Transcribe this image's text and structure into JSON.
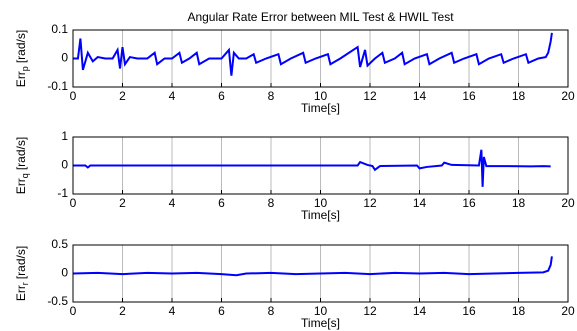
{
  "chart_data": [
    {
      "type": "line",
      "title": "Angular Rate Error between MIL Test & HWIL Test",
      "ylabel": {
        "base": "Err",
        "sub": "p",
        "unit": "[rad/s]"
      },
      "xlabel": "Time[s]",
      "xlim": [
        0,
        20
      ],
      "xticks": [
        0,
        2,
        4,
        6,
        8,
        10,
        12,
        14,
        16,
        18,
        20
      ],
      "ylim": [
        -0.1,
        0.1
      ],
      "yticks": [
        -0.1,
        0,
        0.1
      ],
      "grid": "x",
      "x": [
        0,
        0.2,
        0.3,
        0.4,
        0.6,
        0.8,
        1.0,
        1.3,
        1.6,
        1.8,
        1.9,
        2.0,
        2.1,
        2.3,
        2.6,
        3.0,
        3.3,
        3.4,
        3.7,
        4.0,
        4.3,
        4.4,
        4.7,
        5.0,
        5.1,
        5.5,
        6.0,
        6.3,
        6.4,
        6.5,
        6.7,
        7.0,
        7.3,
        7.4,
        7.8,
        8.3,
        8.4,
        8.8,
        9.3,
        9.4,
        9.8,
        10.3,
        10.4,
        10.8,
        11.5,
        11.6,
        11.8,
        11.9,
        12.2,
        12.5,
        12.6,
        13.0,
        13.3,
        13.4,
        13.8,
        14.3,
        14.4,
        14.8,
        15.3,
        15.4,
        15.8,
        16.3,
        16.4,
        16.8,
        17.3,
        17.4,
        17.8,
        18.3,
        18.4,
        18.8,
        19.1,
        19.2,
        19.3,
        19.35
      ],
      "series": [
        {
          "color": "#0000ff",
          "values": [
            0,
            0,
            0.07,
            -0.04,
            0.02,
            -0.01,
            0.005,
            0,
            0,
            0.03,
            -0.035,
            0.04,
            -0.02,
            0.005,
            0,
            0,
            0.02,
            -0.02,
            0,
            0,
            0.02,
            -0.015,
            0,
            0.02,
            -0.02,
            0,
            0,
            0.03,
            -0.06,
            0.02,
            0,
            0,
            0.015,
            -0.015,
            0,
            0.015,
            -0.02,
            0,
            0.02,
            -0.015,
            0,
            0.015,
            -0.02,
            0,
            0.04,
            -0.03,
            0.03,
            -0.025,
            0,
            0.02,
            -0.015,
            0,
            0.02,
            -0.02,
            0,
            0.015,
            -0.02,
            0,
            0.02,
            -0.015,
            0,
            0.015,
            -0.02,
            0,
            0.015,
            -0.015,
            0,
            0.015,
            -0.015,
            0,
            0.005,
            0.02,
            0.06,
            0.09
          ]
        }
      ]
    },
    {
      "type": "line",
      "ylabel": {
        "base": "Err",
        "sub": "q",
        "unit": "[rad/s]"
      },
      "xlabel": "Time[s]",
      "xlim": [
        0,
        20
      ],
      "xticks": [
        0,
        2,
        4,
        6,
        8,
        10,
        12,
        14,
        16,
        18,
        20
      ],
      "ylim": [
        -1,
        1
      ],
      "yticks": [
        -1,
        0,
        1
      ],
      "grid": "x",
      "x": [
        0,
        0.5,
        0.6,
        0.7,
        11.5,
        11.6,
        11.9,
        12.1,
        12.2,
        12.4,
        13.9,
        14.0,
        14.3,
        14.9,
        15.0,
        15.3,
        16.4,
        16.5,
        16.55,
        16.6,
        16.7,
        17.5,
        18.5,
        19.0,
        19.3
      ],
      "series": [
        {
          "color": "#0000ff",
          "values": [
            0,
            0,
            -0.07,
            0,
            0,
            0.12,
            0.02,
            -0.02,
            -0.15,
            -0.02,
            0,
            -0.1,
            -0.05,
            0,
            0.1,
            0.02,
            0,
            0.55,
            -0.75,
            0.3,
            -0.02,
            -0.02,
            -0.03,
            -0.02,
            -0.03
          ]
        }
      ]
    },
    {
      "type": "line",
      "ylabel": {
        "base": "Err",
        "sub": "r",
        "unit": "[rad/s]"
      },
      "xlabel": "Time[s]",
      "xlim": [
        0,
        20
      ],
      "xticks": [
        0,
        2,
        4,
        6,
        8,
        10,
        12,
        14,
        16,
        18,
        20
      ],
      "ylim": [
        -0.5,
        0.5
      ],
      "yticks": [
        -0.5,
        0,
        0.5
      ],
      "grid": "x",
      "x": [
        0,
        1,
        2,
        3,
        4,
        5,
        6,
        6.6,
        7,
        8,
        9,
        10,
        11,
        12,
        13,
        14,
        15,
        16,
        17,
        18,
        19,
        19.2,
        19.3,
        19.35
      ],
      "series": [
        {
          "color": "#0000ff",
          "values": [
            0,
            0.01,
            -0.01,
            0.01,
            0,
            0.01,
            -0.01,
            -0.03,
            0,
            0.01,
            -0.01,
            0,
            0.01,
            -0.01,
            0.01,
            0,
            0.01,
            -0.01,
            0,
            0.01,
            0.02,
            0.05,
            0.15,
            0.3
          ]
        }
      ]
    }
  ]
}
